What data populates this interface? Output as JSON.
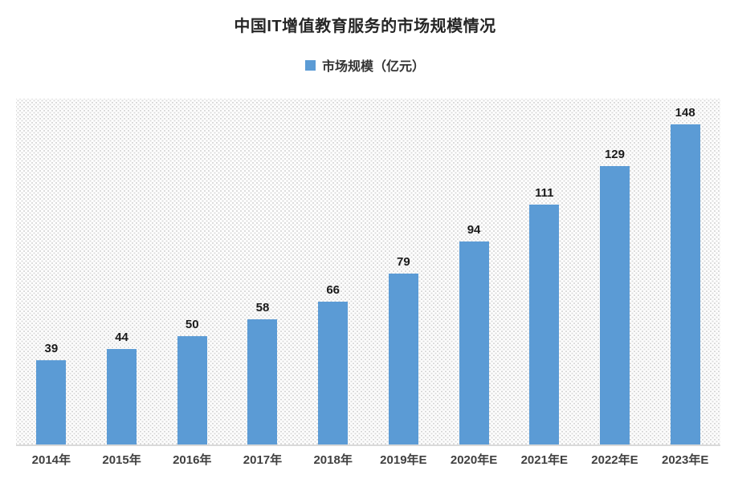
{
  "title": "中国IT增值教育服务的市场规模情况",
  "legend": {
    "label": "市场规模（亿元）"
  },
  "colors": {
    "bar": "#5B9BD5",
    "title_text": "#262626",
    "axis_line": "#d9d9d9",
    "hatch_dot": "#dcdcdc"
  },
  "chart_data": {
    "type": "bar",
    "title": "中国IT增值教育服务的市场规模情况",
    "legend": [
      "市场规模（亿元）"
    ],
    "legend_position": "top-center",
    "categories": [
      "2014年",
      "2015年",
      "2016年",
      "2017年",
      "2018年",
      "2019年E",
      "2020年E",
      "2021年E",
      "2022年E",
      "2023年E"
    ],
    "series": [
      {
        "name": "市场规模（亿元）",
        "values": [
          39,
          44,
          50,
          58,
          66,
          79,
          94,
          111,
          129,
          148
        ]
      }
    ],
    "data_labels": true,
    "xlabel": "",
    "ylabel": "",
    "ylim": [
      0,
      160
    ],
    "grid": false,
    "plot_background": "diagonal-dot-hatch"
  }
}
